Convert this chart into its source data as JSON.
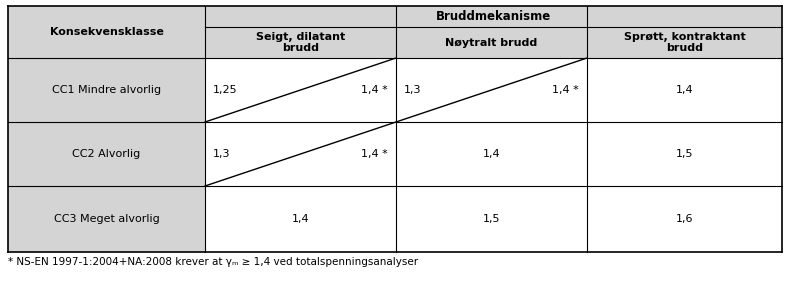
{
  "title_main": "Bruddmekanisme",
  "col_header_0": "Konsekvensklasse",
  "col_header_1": "Seigt, dilatant\nbrudd",
  "col_header_2": "Nøytralt brudd",
  "col_header_3": "Sprøtt, kontraktant\nbrudd",
  "row0_label": "CC1 Mindre alvorlig",
  "row0_c1_l": "1,25",
  "row0_c1_r": "1,4 *",
  "row0_c2_l": "1,3",
  "row0_c2_r": "1,4 *",
  "row0_c3": "1,4",
  "row1_label": "CC2 Alvorlig",
  "row1_c1_l": "1,3",
  "row1_c1_r": "1,4 *",
  "row1_c2": "1,4",
  "row1_c3": "1,5",
  "row2_label": "CC3 Meget alvorlig",
  "row2_c1": "1,4",
  "row2_c2": "1,5",
  "row2_c3": "1,6",
  "footnote": "* NS-EN 1997-1:2004+NA:2008 krever at γₘ ≥ 1,4 ved totalspenningsanalyser",
  "header_bg": "#d4d4d4",
  "cell_bg": "#ffffff",
  "border_color": "#000000",
  "text_color": "#000000",
  "figsize": [
    7.9,
    2.86
  ],
  "dpi": 100
}
